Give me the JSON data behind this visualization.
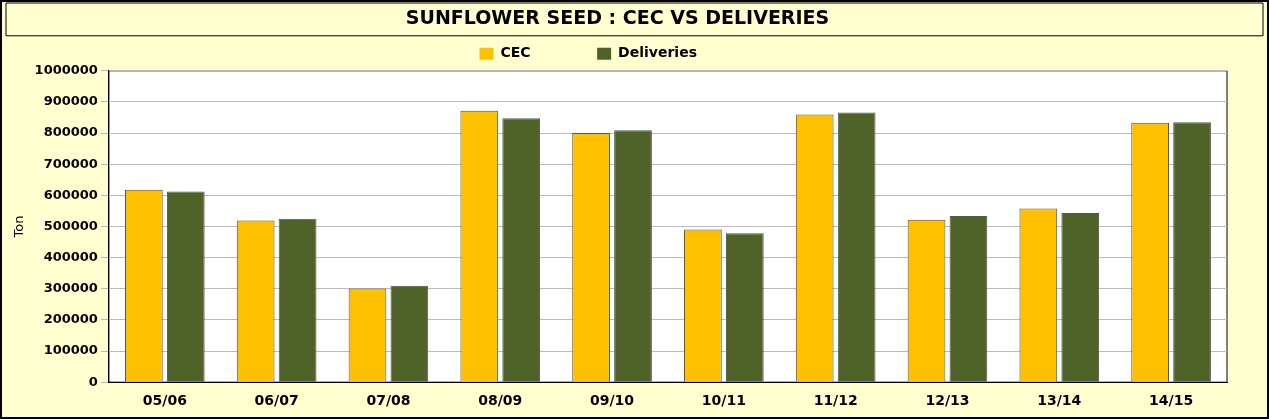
{
  "chart_data": {
    "type": "bar",
    "title": "SUNFLOWER SEED : CEC VS DELIVERIES",
    "ylabel": "Ton",
    "categories": [
      "05/06",
      "06/07",
      "07/08",
      "08/09",
      "09/10",
      "10/11",
      "11/12",
      "12/13",
      "13/14",
      "14/15"
    ],
    "series": [
      {
        "name": "CEC",
        "color": "#ffc000",
        "values": [
          618000,
          519000,
          301000,
          872000,
          800000,
          490000,
          860000,
          522000,
          558000,
          833000
        ]
      },
      {
        "name": "Deliveries",
        "color": "#4f6228",
        "values": [
          612000,
          525000,
          310000,
          848000,
          809000,
          478000,
          866000,
          534000,
          543000,
          835000
        ]
      }
    ],
    "ylim": [
      0,
      1000000
    ],
    "yticks": [
      0,
      100000,
      200000,
      300000,
      400000,
      500000,
      600000,
      700000,
      800000,
      900000,
      1000000
    ],
    "grid": "y",
    "legend": "top"
  }
}
